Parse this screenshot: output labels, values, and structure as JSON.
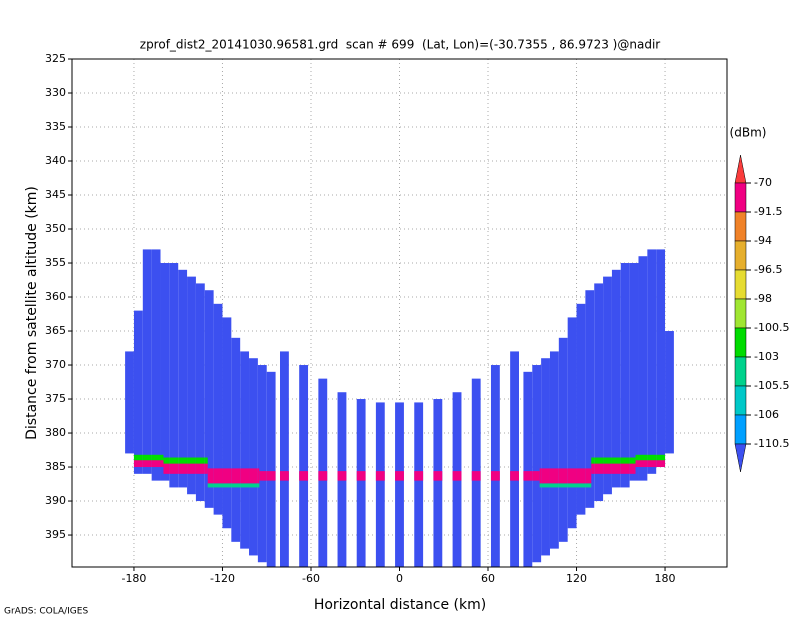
{
  "chart_data": {
    "type": "profile",
    "title": "zprof_dist2_20141030.96581.grd  scan # 699  (Lat, Lon)=(-30.7355 , 86.9723 )@nadir",
    "x_label": "Horizontal distance (km)",
    "y_label": "Distance from satellite altitude (km)",
    "footer": "GrADS: COLA/IGES",
    "xlim": [
      -222,
      222
    ],
    "ylim": [
      325,
      399.7
    ],
    "y_inverted": true,
    "xticks": [
      -180,
      -120,
      -60,
      0,
      60,
      120,
      180
    ],
    "yticks": [
      325,
      330,
      335,
      340,
      345,
      350,
      355,
      360,
      365,
      370,
      375,
      380,
      385,
      390,
      395
    ],
    "grid": true,
    "colorbar": {
      "unit": "(dBm)",
      "levels": [
        -70,
        -91.5,
        -94,
        -96.5,
        -98,
        -100.5,
        -103,
        -105.5,
        -106,
        -110.5
      ],
      "colors": [
        "#fa3c3c",
        "#f00082",
        "#f08228",
        "#e6af2d",
        "#e6dc32",
        "#a0e632",
        "#00dc00",
        "#00d28c",
        "#00c8c8",
        "#00a0ff",
        "#3c50f0"
      ]
    },
    "swath": {
      "value": -111,
      "x0": [
        -186,
        -180,
        -174,
        -168,
        -162,
        -156,
        -150,
        -144,
        -138,
        -132,
        -126,
        -120,
        -114,
        -108,
        -102,
        -96,
        -90,
        -81,
        -68,
        -55,
        -42,
        -29,
        -16,
        -3,
        10,
        23,
        36,
        49,
        62,
        75,
        84,
        90,
        96,
        102,
        108,
        114,
        120,
        126,
        132,
        138,
        144,
        150,
        156,
        162,
        168,
        174,
        180
      ],
      "x1": [
        -180,
        -174,
        -168,
        -162,
        -156,
        -150,
        -144,
        -138,
        -132,
        -126,
        -120,
        -114,
        -108,
        -102,
        -96,
        -90,
        -84,
        -75,
        -62,
        -49,
        -36,
        -23,
        -10,
        3,
        16,
        29,
        42,
        55,
        68,
        81,
        90,
        96,
        102,
        108,
        114,
        120,
        126,
        132,
        138,
        144,
        150,
        156,
        162,
        168,
        174,
        180,
        186
      ],
      "top": [
        368,
        362,
        353,
        353,
        355,
        355,
        356,
        357,
        358,
        359,
        361,
        363,
        366,
        368,
        369,
        370,
        371,
        368,
        370,
        372,
        374,
        375,
        375.5,
        375.5,
        375.5,
        375,
        374,
        372,
        370,
        368,
        371,
        370,
        369,
        368,
        366,
        363,
        361,
        359,
        358,
        357,
        356,
        355,
        355,
        354,
        353,
        353,
        365
      ],
      "bottom": [
        383,
        386,
        386,
        387,
        387,
        388,
        388,
        389,
        390,
        391,
        392,
        394,
        396,
        397,
        398,
        399,
        399.7,
        399.7,
        399.7,
        399.7,
        399.7,
        399.7,
        399.7,
        399.7,
        399.7,
        399.7,
        399.7,
        399.7,
        399.7,
        399.7,
        399.7,
        399,
        398,
        397,
        396,
        394,
        392,
        391,
        390,
        389,
        388,
        388,
        387,
        387,
        386,
        385,
        383
      ]
    },
    "surface": {
      "x0": [
        -186,
        -160,
        -130,
        95,
        130,
        160,
        -186,
        -160,
        -130,
        -95,
        95,
        130,
        160
      ],
      "x1": [
        -160,
        -130,
        -95,
        130,
        160,
        186,
        -160,
        -130,
        -95,
        95,
        130,
        160,
        186
      ],
      "top": [
        383.2,
        383.6,
        387.4,
        387.4,
        383.6,
        383.2,
        384.0,
        384.5,
        385.2,
        385.6,
        385.2,
        384.5,
        384.0
      ],
      "bottom": [
        384.2,
        384.6,
        388.0,
        388.0,
        384.6,
        384.2,
        385.0,
        386.0,
        387.4,
        387.0,
        387.4,
        386.0,
        385.0
      ],
      "values": [
        -101,
        -101,
        -103,
        -103,
        -101,
        -101,
        -85,
        -85,
        -85,
        -85,
        -85,
        -85,
        -85
      ]
    }
  }
}
